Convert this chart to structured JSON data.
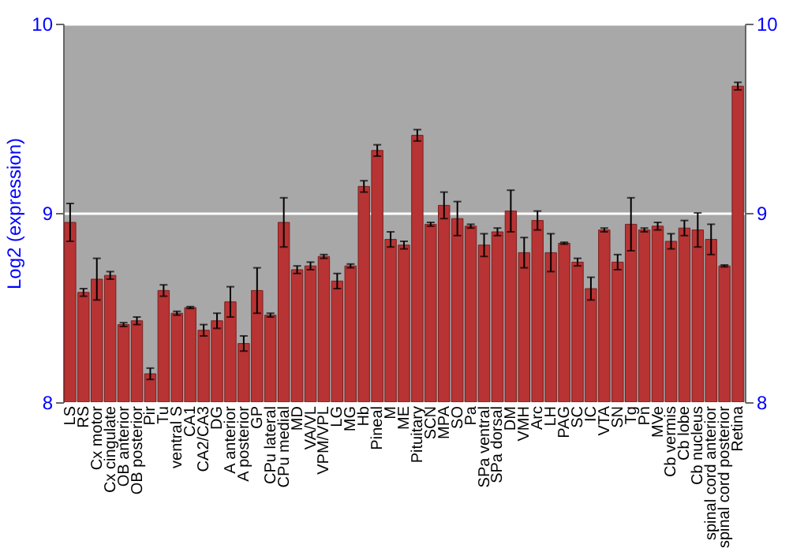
{
  "chart_data": {
    "type": "bar",
    "ylabel": "Log2 (expression)",
    "categories": [
      "LS",
      "RS",
      "Cx motor",
      "Cx cingulate",
      "OB anterior",
      "OB posterior",
      "Pir",
      "Tu",
      "ventral S",
      "CA1",
      "CA2/CA3",
      "DG",
      "A anterior",
      "A posterior",
      "GP",
      "CPu lateral",
      "CPu medial",
      "MD",
      "VA/VL",
      "VPM/VPL",
      "LG",
      "MG",
      "Hb",
      "Pineal",
      "M",
      "ME",
      "Pituitary",
      "SCN",
      "MPA",
      "SO",
      "Pa",
      "SPa ventral",
      "SPa dorsal",
      "DM",
      "VMH",
      "Arc",
      "LH",
      "PAG",
      "SC",
      "IC",
      "VTA",
      "SN",
      "Tg",
      "Pn",
      "MVe",
      "Cb vermis",
      "Cb lobe",
      "Cb nucleus",
      "spinal cord anterior",
      "spinal cord posterior",
      "Retina"
    ],
    "series": [
      {
        "color": "#b83333",
        "values": [
          8.95,
          8.58,
          8.65,
          8.67,
          8.41,
          8.43,
          8.15,
          8.59,
          8.47,
          8.5,
          8.38,
          8.43,
          8.53,
          8.31,
          8.59,
          8.46,
          8.95,
          8.7,
          8.72,
          8.77,
          8.64,
          8.72,
          9.14,
          9.33,
          8.86,
          8.83,
          9.41,
          8.94,
          9.04,
          8.97,
          8.93,
          8.83,
          8.9,
          9.01,
          8.79,
          8.96,
          8.79,
          8.84,
          8.74,
          8.6,
          8.91,
          8.74,
          8.94,
          8.91,
          8.93,
          8.85,
          8.92,
          8.91,
          8.86,
          8.72,
          9.67
        ],
        "errors": [
          0.1,
          0.02,
          0.11,
          0.02,
          0.01,
          0.02,
          0.03,
          0.03,
          0.01,
          0.005,
          0.03,
          0.04,
          0.08,
          0.04,
          0.12,
          0.01,
          0.13,
          0.02,
          0.02,
          0.01,
          0.04,
          0.01,
          0.03,
          0.03,
          0.04,
          0.02,
          0.03,
          0.01,
          0.07,
          0.09,
          0.01,
          0.06,
          0.02,
          0.11,
          0.08,
          0.05,
          0.1,
          0.005,
          0.02,
          0.06,
          0.01,
          0.04,
          0.14,
          0.01,
          0.02,
          0.04,
          0.04,
          0.09,
          0.08,
          0.005,
          0.02
        ]
      }
    ],
    "ylim": [
      8,
      10
    ],
    "yticks": [
      8,
      9,
      10
    ],
    "y2lim": [
      8,
      10
    ],
    "y2ticks": [
      8,
      9,
      10
    ],
    "grid": "y"
  }
}
